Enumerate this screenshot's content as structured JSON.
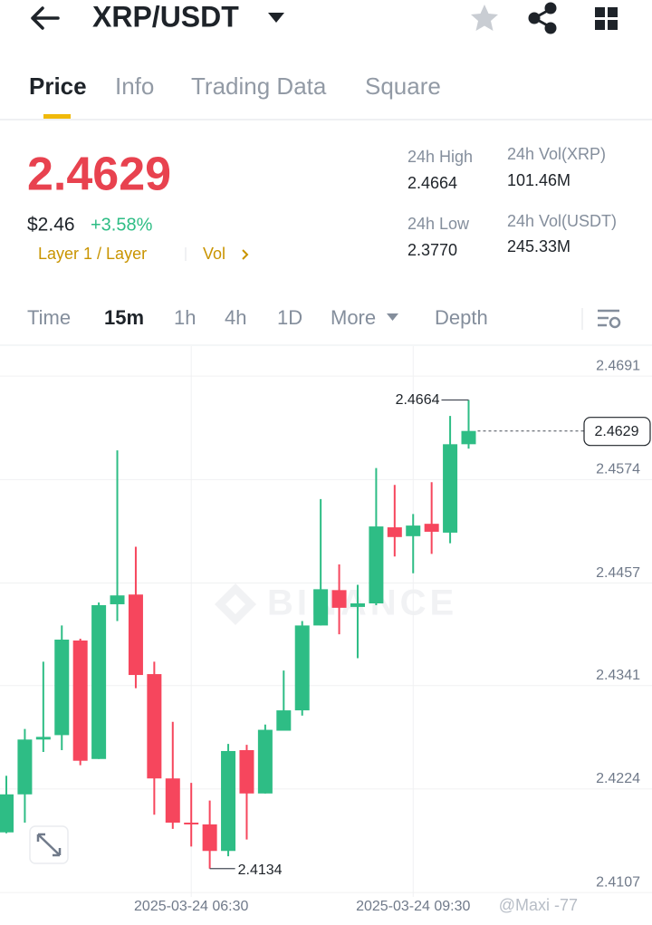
{
  "header": {
    "title": "XRP/USDT"
  },
  "tabs": [
    "Price",
    "Info",
    "Trading Data",
    "Square"
  ],
  "ticker": {
    "last": "2.4629",
    "usd": "$2.46",
    "change": "+3.58%",
    "tags": [
      "Layer 1 / Layer",
      "Vol"
    ]
  },
  "stats": [
    {
      "label": "24h High",
      "value": "2.4664"
    },
    {
      "label": "24h Low",
      "value": "2.3770"
    },
    {
      "label": "24h Vol(XRP)",
      "value": "101.46M"
    },
    {
      "label": "24h Vol(USDT)",
      "value": "245.33M"
    }
  ],
  "intervals": [
    "Time",
    "15m",
    "1h",
    "4h",
    "1D",
    "More",
    "Depth"
  ],
  "chart_data": {
    "type": "candlestick",
    "categories": [
      null,
      null,
      null,
      null,
      null,
      null,
      null,
      null,
      null,
      null,
      "2025-03-24 06:30",
      null,
      null,
      null,
      null,
      null,
      null,
      null,
      null,
      null,
      null,
      null,
      "2025-03-24 09:30",
      null,
      null,
      null
    ],
    "open": [
      2.4175,
      2.4218,
      2.428,
      2.4285,
      2.4392,
      2.4258,
      2.4433,
      2.4444,
      2.4354,
      2.4236,
      2.4186,
      2.4184,
      2.4154,
      2.4268,
      2.4219,
      2.429,
      2.4313,
      2.4409,
      2.4449,
      2.443,
      2.4434,
      2.452,
      2.451,
      2.4524,
      2.4514,
      2.4614
    ],
    "high": [
      2.4239,
      2.4292,
      2.4368,
      2.4409,
      2.4394,
      2.4435,
      2.4607,
      2.4498,
      2.4368,
      2.43,
      2.4231,
      2.4211,
      2.4275,
      2.4274,
      2.4297,
      2.4358,
      2.4414,
      2.4552,
      2.4478,
      2.4455,
      2.4587,
      2.4568,
      2.4535,
      2.4571,
      2.4646,
      2.4664
    ],
    "low": [
      2.4174,
      2.4186,
      2.4266,
      2.4268,
      2.4251,
      2.4258,
      2.4414,
      2.4338,
      2.4195,
      2.4179,
      2.4159,
      2.4134,
      2.4148,
      2.4167,
      2.4219,
      2.429,
      2.4307,
      2.4409,
      2.4399,
      2.4372,
      2.4432,
      2.4487,
      2.4468,
      2.449,
      2.4502,
      2.4609
    ],
    "close": [
      2.4218,
      2.428,
      2.4283,
      2.4393,
      2.4256,
      2.4432,
      2.4443,
      2.4353,
      2.4236,
      2.4186,
      2.4184,
      2.4154,
      2.4267,
      2.4219,
      2.4291,
      2.4313,
      2.4409,
      2.445,
      2.4429,
      2.4434,
      2.4521,
      2.4509,
      2.4522,
      2.4515,
      2.4614,
      2.4629
    ],
    "up_color": "#2ebd85",
    "down_color": "#f6465d",
    "ylim": [
      2.4102,
      2.4725
    ],
    "yticks": [
      2.4691,
      2.4574,
      2.4457,
      2.4341,
      2.4224,
      2.4107
    ],
    "grid": true,
    "high_label": 2.4664,
    "low_label": 2.4134,
    "last_price": 2.4629
  },
  "watermark": "BINANCE",
  "credit": "@Maxi -77"
}
